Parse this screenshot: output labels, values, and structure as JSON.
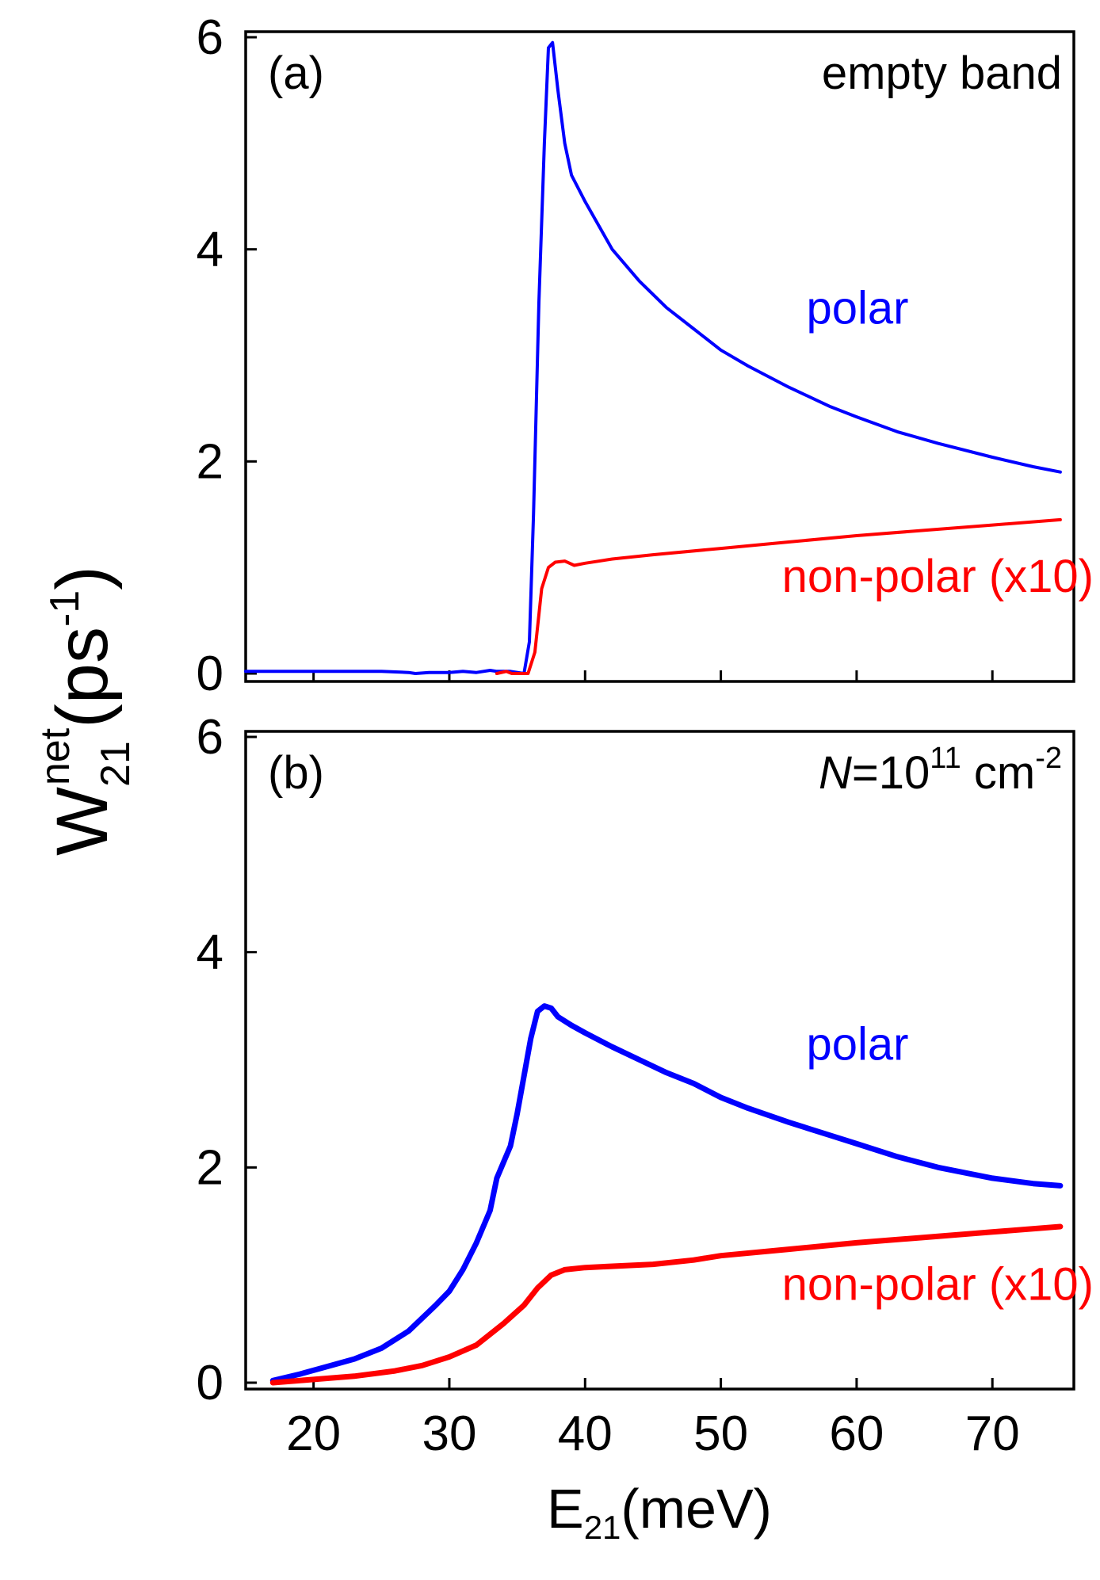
{
  "colors": {
    "polar": "#0000ff",
    "nonpolar": "#ff0000",
    "axis": "#000000"
  },
  "ylabel": {
    "main": "W",
    "sub": "21",
    "sup": "net",
    "unit_open": "(ps",
    "unit_sup": "-1",
    "unit_close": ")"
  },
  "xlabel": {
    "main": "E",
    "sub": "21",
    "unit": "(meV)"
  },
  "chart_data": [
    {
      "type": "line",
      "panel_label": "(a)",
      "corner_label": "empty band",
      "xlim": [
        15,
        76
      ],
      "ylim": [
        0,
        6.1
      ],
      "x_ticks": [
        20,
        30,
        40,
        50,
        60,
        70
      ],
      "y_ticks": [
        0,
        2,
        4,
        6
      ],
      "y_tick_labels": [
        "0",
        "2",
        "4",
        "6"
      ],
      "series": [
        {
          "name": "polar",
          "color_key": "polar",
          "points": [
            [
              15,
              0.02
            ],
            [
              20,
              0.02
            ],
            [
              25,
              0.02
            ],
            [
              27,
              0.01
            ],
            [
              27.5,
              0.0
            ],
            [
              28.5,
              0.01
            ],
            [
              30,
              0.01
            ],
            [
              31,
              0.02
            ],
            [
              32,
              0.01
            ],
            [
              33,
              0.03
            ],
            [
              33.5,
              0.02
            ],
            [
              34.5,
              0.02
            ],
            [
              35.5,
              0.0
            ],
            [
              35.9,
              0.3
            ],
            [
              36.2,
              1.5
            ],
            [
              36.6,
              3.5
            ],
            [
              37.0,
              5.0
            ],
            [
              37.3,
              5.9
            ],
            [
              37.6,
              5.95
            ],
            [
              38.0,
              5.5
            ],
            [
              38.5,
              5.0
            ],
            [
              39.0,
              4.7
            ],
            [
              40,
              4.45
            ],
            [
              42,
              4.0
            ],
            [
              44,
              3.7
            ],
            [
              46,
              3.45
            ],
            [
              48,
              3.25
            ],
            [
              50,
              3.05
            ],
            [
              52,
              2.9
            ],
            [
              55,
              2.7
            ],
            [
              58,
              2.52
            ],
            [
              60,
              2.42
            ],
            [
              63,
              2.28
            ],
            [
              66,
              2.17
            ],
            [
              70,
              2.04
            ],
            [
              73,
              1.95
            ],
            [
              75,
              1.9
            ]
          ]
        },
        {
          "name": "non-polar (x10)",
          "color_key": "nonpolar",
          "points": [
            [
              33.5,
              0.0
            ],
            [
              34.2,
              0.02
            ],
            [
              34.6,
              0.0
            ],
            [
              35.8,
              0.0
            ],
            [
              36.3,
              0.2
            ],
            [
              36.8,
              0.8
            ],
            [
              37.3,
              1.0
            ],
            [
              37.8,
              1.05
            ],
            [
              38.5,
              1.06
            ],
            [
              39.2,
              1.02
            ],
            [
              40,
              1.04
            ],
            [
              42,
              1.08
            ],
            [
              45,
              1.12
            ],
            [
              50,
              1.18
            ],
            [
              55,
              1.24
            ],
            [
              60,
              1.3
            ],
            [
              65,
              1.35
            ],
            [
              70,
              1.4
            ],
            [
              75,
              1.45
            ]
          ]
        }
      ],
      "annotations": [
        {
          "text": "polar",
          "x": 56.3,
          "y": 3.3,
          "color_key": "polar"
        },
        {
          "text": "non-polar (x10)",
          "x": 54.5,
          "y": 0.77,
          "color_key": "nonpolar"
        }
      ]
    },
    {
      "type": "line",
      "panel_label": "(b)",
      "corner_label": {
        "italic": "N",
        "text": "=10",
        "sup1": "11",
        "unit": "cm",
        "sup2": "-2"
      },
      "xlim": [
        15,
        76
      ],
      "ylim": [
        0,
        6.1
      ],
      "x_ticks": [
        20,
        30,
        40,
        50,
        60,
        70
      ],
      "x_tick_labels": [
        "20",
        "30",
        "40",
        "50",
        "60",
        "70"
      ],
      "y_ticks": [
        0,
        2,
        4,
        6
      ],
      "y_tick_labels": [
        "0",
        "2",
        "4",
        "6"
      ],
      "series": [
        {
          "name": "polar",
          "color_key": "polar",
          "points": [
            [
              17,
              0.02
            ],
            [
              19,
              0.08
            ],
            [
              21,
              0.15
            ],
            [
              23,
              0.22
            ],
            [
              25,
              0.32
            ],
            [
              27,
              0.48
            ],
            [
              29,
              0.72
            ],
            [
              30,
              0.85
            ],
            [
              31,
              1.05
            ],
            [
              32,
              1.3
            ],
            [
              33,
              1.6
            ],
            [
              33.5,
              1.9
            ],
            [
              34,
              2.05
            ],
            [
              34.5,
              2.2
            ],
            [
              35,
              2.5
            ],
            [
              35.5,
              2.85
            ],
            [
              36,
              3.2
            ],
            [
              36.5,
              3.45
            ],
            [
              37,
              3.5
            ],
            [
              37.5,
              3.48
            ],
            [
              38,
              3.4
            ],
            [
              39,
              3.32
            ],
            [
              40,
              3.25
            ],
            [
              42,
              3.12
            ],
            [
              44,
              3.0
            ],
            [
              46,
              2.88
            ],
            [
              48,
              2.78
            ],
            [
              50,
              2.65
            ],
            [
              52,
              2.55
            ],
            [
              55,
              2.42
            ],
            [
              58,
              2.3
            ],
            [
              60,
              2.22
            ],
            [
              63,
              2.1
            ],
            [
              66,
              2.0
            ],
            [
              70,
              1.9
            ],
            [
              73,
              1.85
            ],
            [
              75,
              1.83
            ]
          ]
        },
        {
          "name": "non-polar (x10)",
          "color_key": "nonpolar",
          "points": [
            [
              17,
              0.0
            ],
            [
              20,
              0.03
            ],
            [
              23,
              0.06
            ],
            [
              26,
              0.11
            ],
            [
              28,
              0.16
            ],
            [
              30,
              0.24
            ],
            [
              32,
              0.35
            ],
            [
              34,
              0.55
            ],
            [
              35.5,
              0.72
            ],
            [
              36.5,
              0.88
            ],
            [
              37.5,
              1.0
            ],
            [
              38.5,
              1.05
            ],
            [
              40,
              1.07
            ],
            [
              45,
              1.1
            ],
            [
              48,
              1.14
            ],
            [
              50,
              1.18
            ],
            [
              55,
              1.24
            ],
            [
              60,
              1.3
            ],
            [
              65,
              1.35
            ],
            [
              70,
              1.4
            ],
            [
              75,
              1.45
            ]
          ]
        }
      ],
      "annotations": [
        {
          "text": "polar",
          "x": 56.3,
          "y": 3.0,
          "color_key": "polar"
        },
        {
          "text": "non-polar (x10)",
          "x": 54.5,
          "y": 0.77,
          "color_key": "nonpolar"
        }
      ]
    }
  ]
}
